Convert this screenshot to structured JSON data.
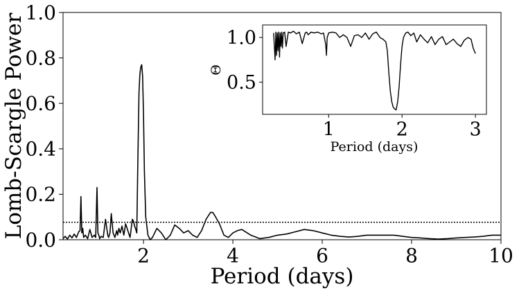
{
  "chart_data": [
    {
      "type": "line",
      "title": "",
      "xlabel": "Period (days)",
      "ylabel": "Lomb-Scargle Power",
      "xlim": [
        0.2,
        10
      ],
      "ylim": [
        0,
        1.0
      ],
      "xticks": [
        2,
        4,
        6,
        8,
        10
      ],
      "yticks": [
        0.0,
        0.2,
        0.4,
        0.6,
        0.8,
        1.0
      ],
      "xtick_labels": [
        "2",
        "4",
        "6",
        "8",
        "10"
      ],
      "ytick_labels": [
        "0.0",
        "0.2",
        "0.4",
        "0.6",
        "0.8",
        "1.0"
      ],
      "grid": false,
      "threshold": 0.077,
      "threshold_style": "dotted",
      "series": [
        {
          "color": "#000000",
          "x": [
            0.2,
            0.25,
            0.3,
            0.35,
            0.4,
            0.45,
            0.5,
            0.55,
            0.58,
            0.6,
            0.62,
            0.64,
            0.66,
            0.7,
            0.75,
            0.8,
            0.85,
            0.9,
            0.93,
            0.96,
            0.98,
            1.0,
            1.02,
            1.05,
            1.1,
            1.15,
            1.2,
            1.22,
            1.25,
            1.28,
            1.32,
            1.36,
            1.4,
            1.42,
            1.45,
            1.48,
            1.52,
            1.56,
            1.6,
            1.65,
            1.7,
            1.75,
            1.78,
            1.8,
            1.82,
            1.85,
            1.87,
            1.9,
            1.92,
            1.94,
            1.96,
            1.98,
            2.0,
            2.02,
            2.05,
            2.1,
            2.15,
            2.2,
            2.3,
            2.4,
            2.5,
            2.6,
            2.7,
            2.8,
            2.9,
            3.0,
            3.1,
            3.2,
            3.3,
            3.4,
            3.5,
            3.55,
            3.6,
            3.7,
            3.8,
            3.9,
            4.0,
            4.1,
            4.2,
            4.4,
            4.6,
            4.8,
            5.0,
            5.2,
            5.4,
            5.6,
            5.8,
            6.0,
            6.2,
            6.4,
            6.6,
            6.8,
            7.0,
            7.2,
            7.4,
            7.6,
            7.8,
            8.0,
            8.2,
            8.4,
            8.6,
            8.8,
            9.0,
            9.2,
            9.4,
            9.6,
            9.8,
            10.0
          ],
          "y": [
            0.005,
            0.015,
            0.003,
            0.02,
            0.008,
            0.025,
            0.01,
            0.035,
            0.04,
            0.19,
            0.03,
            0.05,
            0.01,
            0.02,
            0.005,
            0.045,
            0.01,
            0.02,
            0.01,
            0.23,
            0.03,
            0.02,
            0.005,
            0.015,
            0.01,
            0.09,
            0.02,
            0.01,
            0.03,
            0.115,
            0.03,
            0.01,
            0.04,
            0.02,
            0.05,
            0.03,
            0.06,
            0.02,
            0.07,
            0.04,
            0.01,
            0.09,
            0.08,
            0.06,
            0.05,
            0.03,
            0.3,
            0.65,
            0.73,
            0.76,
            0.77,
            0.72,
            0.55,
            0.3,
            0.1,
            0.02,
            0.0,
            0.01,
            0.05,
            0.03,
            0.0,
            0.02,
            0.065,
            0.05,
            0.03,
            0.04,
            0.02,
            0.01,
            0.04,
            0.09,
            0.12,
            0.12,
            0.105,
            0.07,
            0.02,
            0.01,
            0.03,
            0.04,
            0.045,
            0.02,
            0.005,
            0.01,
            0.02,
            0.025,
            0.035,
            0.045,
            0.04,
            0.03,
            0.02,
            0.015,
            0.012,
            0.015,
            0.02,
            0.02,
            0.02,
            0.02,
            0.015,
            0.01,
            0.008,
            0.005,
            0.003,
            0.005,
            0.008,
            0.01,
            0.012,
            0.015,
            0.02,
            0.02
          ]
        }
      ]
    },
    {
      "type": "line",
      "title": "",
      "xlabel": "Period (days)",
      "ylabel": "Θ",
      "xlim": [
        0.1,
        3.15
      ],
      "ylim": [
        0.14,
        1.14
      ],
      "xticks": [
        1,
        2,
        3
      ],
      "yticks": [
        0.5,
        1.0
      ],
      "xtick_labels": [
        "1",
        "2",
        "3"
      ],
      "ytick_labels": [
        "0.5",
        "1.0"
      ],
      "grid": false,
      "series": [
        {
          "color": "#000000",
          "x": [
            0.25,
            0.27,
            0.28,
            0.29,
            0.3,
            0.31,
            0.32,
            0.33,
            0.34,
            0.35,
            0.36,
            0.37,
            0.38,
            0.4,
            0.42,
            0.45,
            0.48,
            0.52,
            0.56,
            0.6,
            0.64,
            0.68,
            0.7,
            0.72,
            0.76,
            0.8,
            0.85,
            0.9,
            0.93,
            0.96,
            0.97,
            0.98,
            1.0,
            1.05,
            1.1,
            1.15,
            1.2,
            1.25,
            1.3,
            1.35,
            1.4,
            1.45,
            1.5,
            1.55,
            1.6,
            1.65,
            1.7,
            1.74,
            1.78,
            1.8,
            1.82,
            1.84,
            1.86,
            1.88,
            1.9,
            1.92,
            1.94,
            1.96,
            1.98,
            2.0,
            2.02,
            2.05,
            2.08,
            2.12,
            2.16,
            2.2,
            2.25,
            2.3,
            2.35,
            2.4,
            2.45,
            2.5,
            2.55,
            2.6,
            2.65,
            2.7,
            2.75,
            2.8,
            2.85,
            2.9,
            2.94,
            2.97,
            3.0
          ],
          "y": [
            1.05,
            0.75,
            1.06,
            0.8,
            1.05,
            0.85,
            1.06,
            0.78,
            1.05,
            0.9,
            1.06,
            0.88,
            1.05,
            1.06,
            0.9,
            1.06,
            1.05,
            1.07,
            1.04,
            1.06,
            0.93,
            1.05,
            1.06,
            1.03,
            1.06,
            1.05,
            1.06,
            1.04,
            1.05,
            0.92,
            0.8,
            1.0,
            1.05,
            1.06,
            1.05,
            1.0,
            1.03,
            1.0,
            0.9,
            1.02,
            1.03,
            1.0,
            1.05,
            0.98,
            1.04,
            1.06,
            1.0,
            0.98,
            0.95,
            0.85,
            0.6,
            0.4,
            0.28,
            0.22,
            0.2,
            0.19,
            0.28,
            0.45,
            0.7,
            0.9,
            1.0,
            1.05,
            1.06,
            1.02,
            1.05,
            0.95,
            1.03,
            0.98,
            0.94,
            1.01,
            0.92,
            0.98,
            1.01,
            0.92,
            0.95,
            0.98,
            0.93,
            0.9,
            0.97,
            1.0,
            0.98,
            0.88,
            0.82
          ]
        }
      ]
    }
  ]
}
